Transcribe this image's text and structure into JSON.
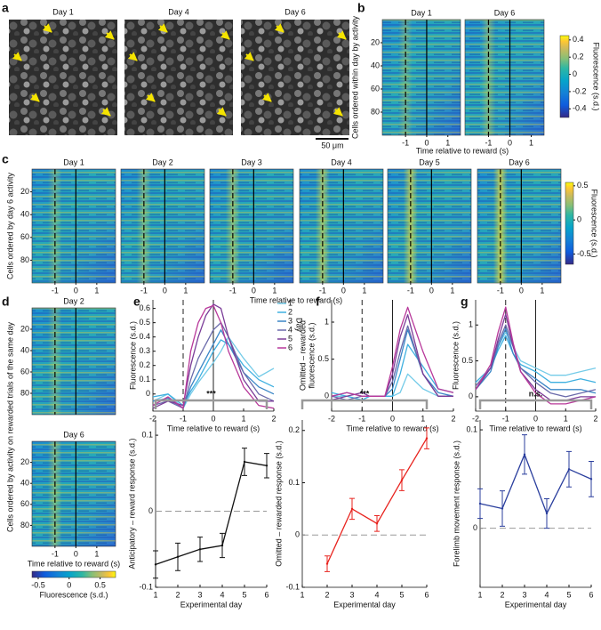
{
  "a": {
    "label": "a",
    "titles": [
      "Day 1",
      "Day 4",
      "Day 6"
    ],
    "scale_bar": "50 μm"
  },
  "b": {
    "label": "b",
    "titles": [
      "Day 1",
      "Day 6"
    ],
    "ylabel": "Cells ordered within day by activity",
    "xlabel": "Time relative to reward (s)",
    "xlim": [
      -2.1,
      1.6
    ],
    "ylim": [
      0,
      100
    ],
    "xticks": [
      -1,
      0,
      1
    ],
    "yticks": [
      20,
      40,
      60,
      80
    ],
    "colorbar": {
      "label": "Fluorescence (s.d.)",
      "lim": [
        -0.5,
        0.45
      ],
      "ticks": [
        0.4,
        0.2,
        0,
        -0.2,
        -0.4
      ]
    }
  },
  "c": {
    "label": "c",
    "titles": [
      "Day 1",
      "Day 2",
      "Day 3",
      "Day 4",
      "Day 5",
      "Day 6"
    ],
    "ylabel": "Cells ordered by day 6 activity",
    "xlabel": "Time relative to reward (s)",
    "xlim": [
      -2.1,
      1.9
    ],
    "ylim": [
      0,
      100
    ],
    "xticks": [
      -1,
      0,
      1
    ],
    "yticks": [
      20,
      40,
      60,
      80
    ],
    "colorbar": {
      "label": "Fluorescence (s.d.)",
      "lim": [
        -0.65,
        0.55
      ],
      "ticks": [
        0.5,
        0,
        -0.5
      ]
    }
  },
  "d": {
    "label": "d",
    "titles": [
      "Day 2",
      "Day 6"
    ],
    "ylabel": "Cells ordered by activity on rewarded trials of the same day",
    "xlabel": "Time relative to reward (s)",
    "xlim": [
      -2.1,
      1.9
    ],
    "ylim": [
      0,
      100
    ],
    "xticks": [
      -1,
      0,
      1
    ],
    "yticks": [
      20,
      40,
      60,
      80
    ],
    "colorbar": {
      "label": "Fluorescence (s.d.)",
      "lim": [
        -0.6,
        0.75
      ],
      "ticks": [
        -0.5,
        0,
        0.5
      ]
    }
  },
  "e": {
    "label": "e",
    "traces": {
      "type": "line",
      "ylabel": [
        "Fluorescence (s.d.)"
      ],
      "xlabel": "Time relative to reward (s)",
      "legend_title": "Day",
      "x": [
        -2,
        -1.5,
        -1,
        -0.75,
        -0.5,
        -0.25,
        0,
        0.25,
        0.5,
        1,
        1.5,
        2
      ],
      "xlim": [
        -2,
        2
      ],
      "xticks": [
        -2,
        -1,
        0,
        1,
        2
      ],
      "ylim": [
        -0.12,
        0.66
      ],
      "yticks": [
        0,
        0.1,
        0.2,
        0.3,
        0.4,
        0.5,
        0.6
      ],
      "vlines": [
        {
          "x": -1,
          "style": "dashed"
        },
        {
          "x": 0,
          "style": "solid"
        }
      ],
      "series": [
        {
          "name": "1",
          "color": "#74cbe8",
          "values": [
            -0.05,
            0.0,
            -0.1,
            0.0,
            0.08,
            0.15,
            0.22,
            0.3,
            0.4,
            0.25,
            0.12,
            0.18
          ]
        },
        {
          "name": "2",
          "color": "#3fb0e0",
          "values": [
            -0.02,
            0.0,
            -0.08,
            0.02,
            0.1,
            0.2,
            0.3,
            0.38,
            0.35,
            0.2,
            0.1,
            0.05
          ]
        },
        {
          "name": "3",
          "color": "#3a86c6",
          "values": [
            -0.05,
            -0.03,
            -0.1,
            0.05,
            0.15,
            0.25,
            0.35,
            0.45,
            0.35,
            0.15,
            0.05,
            0.0
          ]
        },
        {
          "name": "4",
          "color": "#6a6aaa",
          "values": [
            -0.08,
            -0.05,
            -0.1,
            0.1,
            0.25,
            0.35,
            0.45,
            0.5,
            0.4,
            0.15,
            0.0,
            -0.05
          ]
        },
        {
          "name": "5",
          "color": "#7b3d98",
          "values": [
            -0.1,
            -0.05,
            -0.08,
            0.2,
            0.4,
            0.55,
            0.63,
            0.6,
            0.4,
            0.1,
            -0.05,
            -0.05
          ]
        },
        {
          "name": "6",
          "color": "#b8389a",
          "values": [
            -0.08,
            -0.02,
            -0.1,
            0.3,
            0.5,
            0.6,
            0.62,
            0.5,
            0.3,
            0.05,
            -0.08,
            -0.1
          ]
        }
      ]
    },
    "summary": {
      "type": "errorbar",
      "ylabel": "Anticipatory – reward response (s.d.)",
      "xlabel": "Experimental day",
      "significance": "***",
      "color": "#111111",
      "x": [
        1,
        2,
        3,
        4,
        5,
        6
      ],
      "values": [
        -0.07,
        -0.06,
        -0.05,
        -0.045,
        0.065,
        0.06
      ],
      "errors": [
        0.018,
        0.018,
        0.016,
        0.016,
        0.018,
        0.016
      ],
      "xlim": [
        1,
        6
      ],
      "xticks": [
        1,
        2,
        3,
        4,
        5,
        6
      ],
      "ylim": [
        -0.1,
        0.12
      ],
      "yticks": [
        -0.1,
        0,
        0.1
      ],
      "hline": 0
    }
  },
  "f": {
    "label": "f",
    "traces": {
      "type": "line",
      "ylabel": [
        "Omitted – rewarded",
        "fluorescence (s.d.)"
      ],
      "xlabel": "Time relative to reward (s)",
      "x": [
        -2,
        -1.5,
        -1,
        -0.75,
        -0.5,
        -0.25,
        0,
        0.25,
        0.5,
        1,
        1.5,
        2
      ],
      "xlim": [
        -2,
        2
      ],
      "xticks": [
        -2,
        -1,
        0,
        1,
        2
      ],
      "ylim": [
        -0.2,
        1.3
      ],
      "yticks": [
        0,
        0.5,
        1
      ],
      "vlines": [
        {
          "x": -1,
          "style": "dashed"
        },
        {
          "x": 0,
          "style": "solid"
        }
      ],
      "series": [
        {
          "color": "#74cbe8",
          "values": [
            0.0,
            0.0,
            -0.05,
            0.0,
            0.0,
            0.0,
            0.0,
            0.05,
            0.3,
            0.1,
            0.0,
            0.0
          ]
        },
        {
          "color": "#3fb0e0",
          "values": [
            0.05,
            0.0,
            -0.05,
            0.0,
            0.0,
            0.0,
            0.0,
            0.3,
            0.7,
            0.4,
            0.1,
            0.05
          ]
        },
        {
          "color": "#3a86c6",
          "values": [
            0.0,
            0.05,
            0.0,
            0.0,
            0.0,
            0.0,
            0.1,
            0.5,
            0.9,
            0.3,
            0.05,
            0.0
          ]
        },
        {
          "color": "#6a6aaa",
          "values": [
            0.0,
            -0.05,
            0.0,
            0.0,
            0.0,
            0.0,
            0.2,
            0.6,
            0.95,
            0.3,
            0.0,
            0.0
          ]
        },
        {
          "color": "#7b3d98",
          "values": [
            -0.05,
            0.0,
            0.05,
            0.0,
            0.0,
            0.0,
            0.3,
            0.8,
            1.1,
            0.3,
            0.0,
            0.0
          ]
        },
        {
          "color": "#b8389a",
          "values": [
            0.0,
            0.05,
            0.0,
            0.0,
            0.0,
            0.0,
            0.4,
            0.9,
            1.2,
            0.6,
            0.1,
            0.05
          ]
        }
      ]
    },
    "summary": {
      "type": "errorbar",
      "ylabel": "Omitted – rewarded response (s.d.)",
      "xlabel": "Experimental day",
      "significance": "***",
      "color": "#e8231e",
      "x": [
        2,
        3,
        4,
        5,
        6
      ],
      "values": [
        -0.055,
        0.05,
        0.022,
        0.105,
        0.185
      ],
      "errors": [
        0.015,
        0.02,
        0.015,
        0.02,
        0.02
      ],
      "xlim": [
        1,
        6
      ],
      "xticks": [
        1,
        2,
        3,
        4,
        5,
        6
      ],
      "ylim": [
        -0.1,
        0.22
      ],
      "yticks": [
        -0.1,
        0,
        0.1,
        0.2
      ],
      "hline": 0
    }
  },
  "g": {
    "label": "g",
    "traces": {
      "type": "line",
      "ylabel": [
        "Fluorescence (s.d.)"
      ],
      "xlabel": "Time relative to reward (s)",
      "x": [
        -2,
        -1.5,
        -1.25,
        -1,
        -0.75,
        -0.5,
        0,
        0.5,
        1,
        1.5,
        2
      ],
      "xlim": [
        -2,
        2
      ],
      "xticks": [
        -2,
        -1,
        0,
        1,
        2
      ],
      "ylim": [
        -0.2,
        1.35
      ],
      "yticks": [
        0,
        0.5,
        1
      ],
      "vlines": [
        {
          "x": -1,
          "style": "dashed"
        },
        {
          "x": 0,
          "style": "solid"
        }
      ],
      "series": [
        {
          "color": "#74cbe8",
          "values": [
            0.2,
            0.4,
            0.7,
            0.9,
            0.7,
            0.5,
            0.4,
            0.3,
            0.3,
            0.35,
            0.4
          ]
        },
        {
          "color": "#3fb0e0",
          "values": [
            0.2,
            0.4,
            0.65,
            0.85,
            0.6,
            0.45,
            0.35,
            0.2,
            0.2,
            0.25,
            0.2
          ]
        },
        {
          "color": "#3a86c6",
          "values": [
            0.1,
            0.35,
            0.7,
            0.95,
            0.6,
            0.4,
            0.25,
            0.1,
            0.1,
            0.1,
            0.05
          ]
        },
        {
          "color": "#6a6aaa",
          "values": [
            0.15,
            0.4,
            0.75,
            1.0,
            0.7,
            0.4,
            0.2,
            0.05,
            0.0,
            0.05,
            0.1
          ]
        },
        {
          "color": "#7b3d98",
          "values": [
            0.1,
            0.4,
            0.8,
            1.15,
            0.7,
            0.35,
            0.1,
            -0.05,
            -0.05,
            0.0,
            0.0
          ]
        },
        {
          "color": "#b8389a",
          "values": [
            0.1,
            0.45,
            0.9,
            1.25,
            0.75,
            0.35,
            0.05,
            -0.1,
            -0.1,
            -0.05,
            0.0
          ]
        }
      ]
    },
    "summary": {
      "type": "errorbar",
      "ylabel": "Forelimb movement  response (s.d.)",
      "xlabel": "Experimental day",
      "significance": "n.s.",
      "color": "#2b3f9e",
      "x": [
        1,
        2,
        3,
        4,
        5,
        6
      ],
      "values": [
        0.025,
        0.02,
        0.075,
        0.015,
        0.06,
        0.05
      ],
      "errors": [
        0.015,
        0.018,
        0.02,
        0.015,
        0.018,
        0.018
      ],
      "xlim": [
        1,
        6
      ],
      "xticks": [
        1,
        2,
        3,
        4,
        5,
        6
      ],
      "ylim": [
        -0.06,
        0.11
      ],
      "yticks": [
        0,
        0.1
      ],
      "hline": 0
    }
  }
}
